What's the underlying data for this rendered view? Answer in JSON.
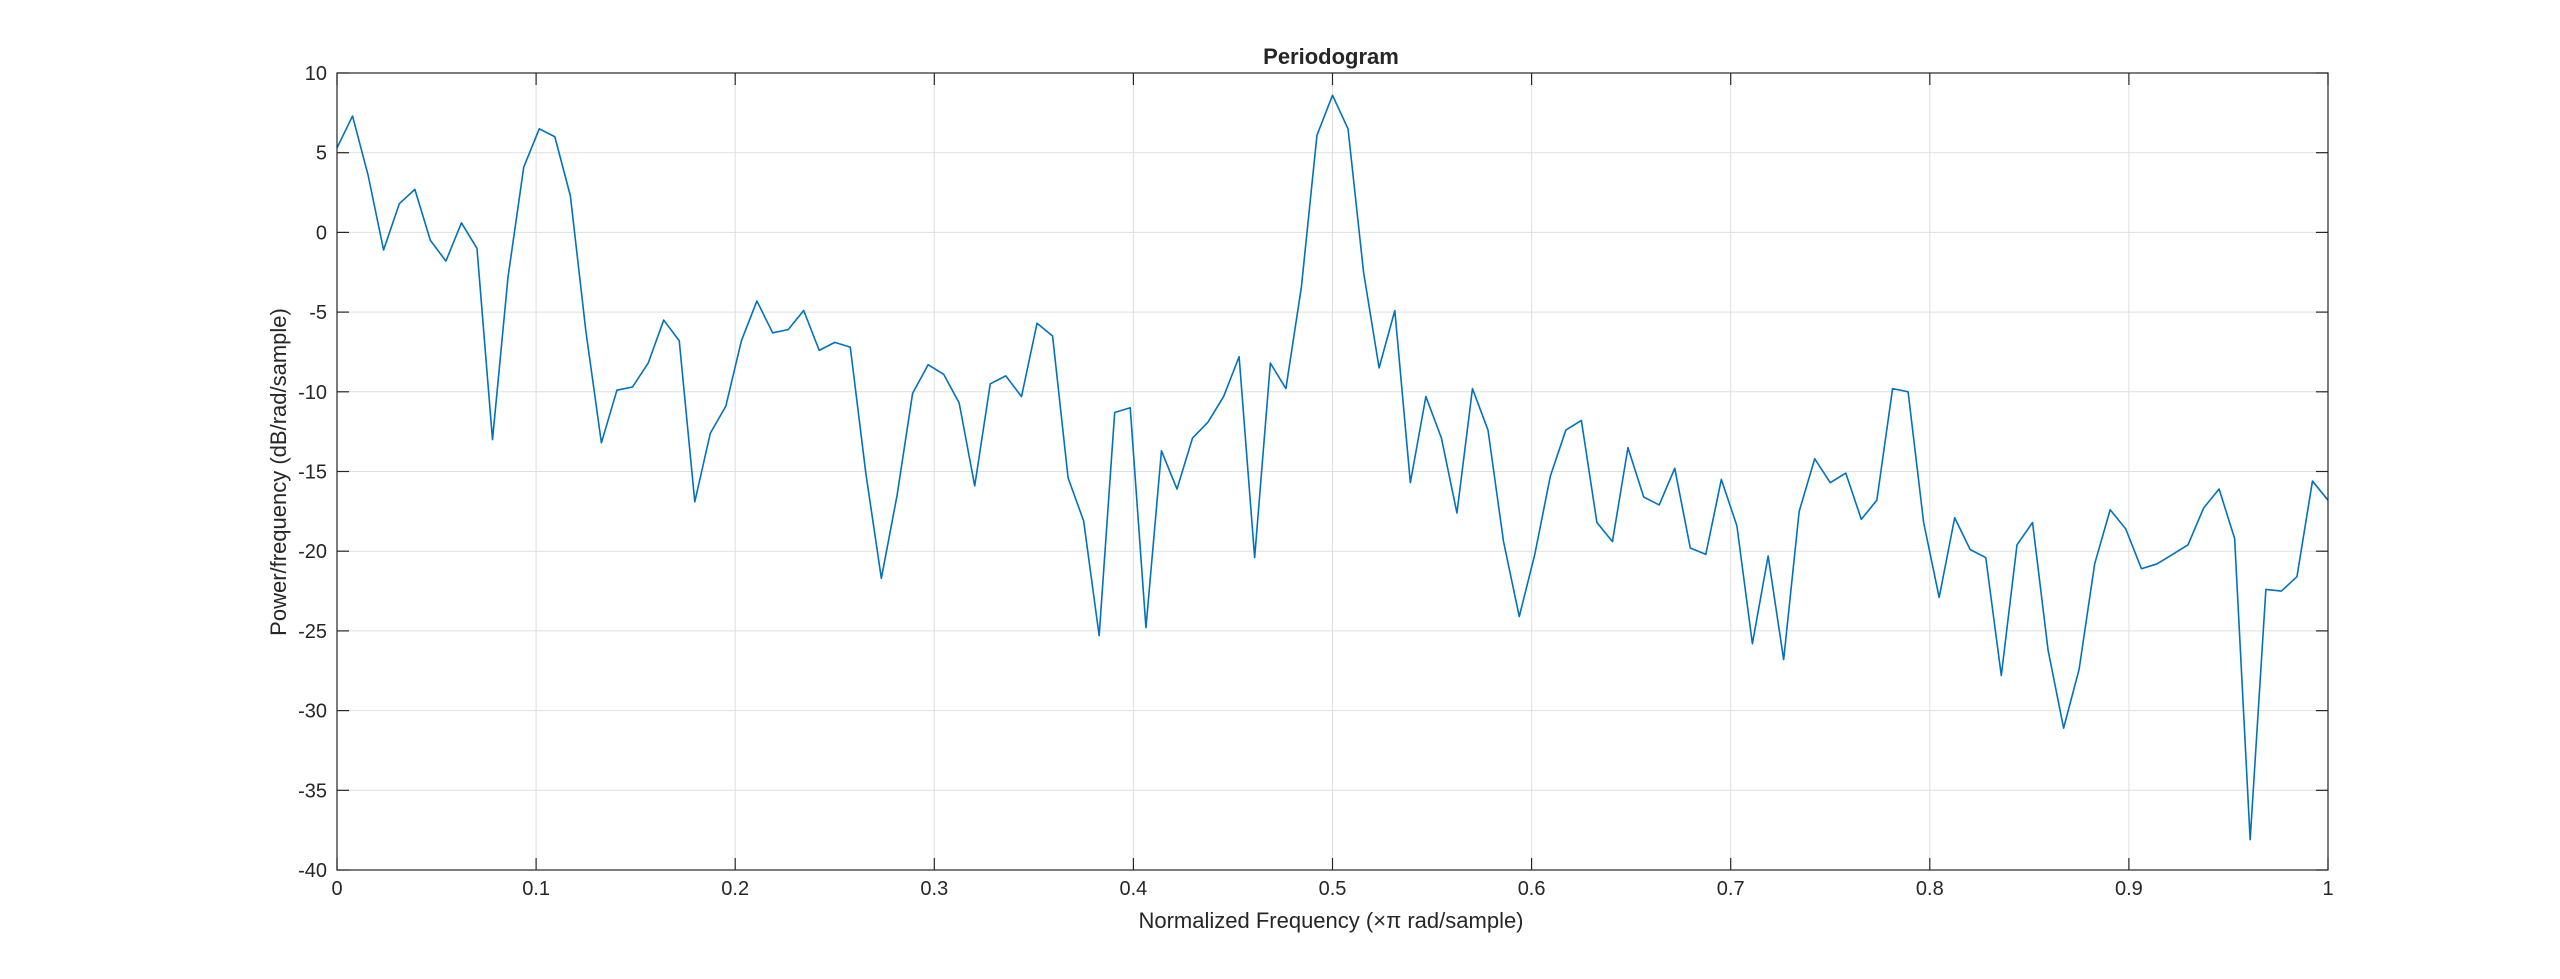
{
  "chart_data": {
    "type": "line",
    "title": "Periodogram",
    "xlabel": "Normalized Frequency  (×π rad/sample)",
    "ylabel": "Power/frequency (dB/rad/sample)",
    "xlim": [
      0,
      1
    ],
    "ylim": [
      -40,
      10
    ],
    "xticks": [
      0,
      0.1,
      0.2,
      0.3,
      0.4,
      0.5,
      0.6,
      0.7,
      0.8,
      0.9,
      1
    ],
    "yticks": [
      -40,
      -35,
      -30,
      -25,
      -20,
      -15,
      -10,
      -5,
      0,
      5,
      10
    ],
    "xtick_labels": [
      "0",
      "0.1",
      "0.2",
      "0.3",
      "0.4",
      "0.5",
      "0.6",
      "0.7",
      "0.8",
      "0.9",
      "1"
    ],
    "ytick_labels": [
      "-40",
      "-35",
      "-30",
      "-25",
      "-20",
      "-15",
      "-10",
      "-5",
      "0",
      "5",
      "10"
    ],
    "grid": true,
    "box": true,
    "line_color": "#0072BD",
    "grid_color": "#dfdfdf",
    "axis_color": "#262626",
    "series": [
      {
        "x": [
          0,
          0.0078,
          0.0156,
          0.0234,
          0.0313,
          0.0391,
          0.0469,
          0.0547,
          0.0625,
          0.0703,
          0.0781,
          0.0859,
          0.0938,
          0.1016,
          0.1094,
          0.1172,
          0.125,
          0.1328,
          0.1406,
          0.1484,
          0.1563,
          0.1641,
          0.1719,
          0.1797,
          0.1875,
          0.1953,
          0.2031,
          0.2109,
          0.2188,
          0.2266,
          0.2344,
          0.2422,
          0.25,
          0.2578,
          0.2656,
          0.2734,
          0.2813,
          0.2891,
          0.2969,
          0.3047,
          0.3125,
          0.3203,
          0.3281,
          0.3359,
          0.3438,
          0.3516,
          0.3594,
          0.3672,
          0.375,
          0.3828,
          0.3906,
          0.3984,
          0.4063,
          0.4141,
          0.4219,
          0.4297,
          0.4375,
          0.4453,
          0.4531,
          0.4609,
          0.4688,
          0.4766,
          0.4844,
          0.4922,
          0.5,
          0.5078,
          0.5156,
          0.5234,
          0.5313,
          0.5391,
          0.5469,
          0.5547,
          0.5625,
          0.5703,
          0.5781,
          0.5859,
          0.5938,
          0.6016,
          0.6094,
          0.6172,
          0.625,
          0.6328,
          0.6406,
          0.6484,
          0.6563,
          0.6641,
          0.6719,
          0.6797,
          0.6875,
          0.6953,
          0.7031,
          0.7109,
          0.7188,
          0.7266,
          0.7344,
          0.7422,
          0.75,
          0.7578,
          0.7656,
          0.7734,
          0.7813,
          0.7891,
          0.7969,
          0.8047,
          0.8125,
          0.8203,
          0.8281,
          0.8359,
          0.8438,
          0.8516,
          0.8594,
          0.8672,
          0.875,
          0.8828,
          0.8906,
          0.8984,
          0.9063,
          0.9141,
          0.9219,
          0.9297,
          0.9375,
          0.9453,
          0.9531,
          0.9609,
          0.9688,
          0.9766,
          0.9844,
          0.9922,
          1
        ],
        "y": [
          5.3,
          7.3,
          3.6,
          -1.1,
          1.8,
          2.7,
          -0.5,
          -1.8,
          0.6,
          -1,
          -13,
          -2.8,
          4.1,
          6.5,
          6,
          2.3,
          -6.2,
          -13.2,
          -9.9,
          -9.7,
          -8.2,
          -5.5,
          -6.8,
          -16.9,
          -12.6,
          -10.9,
          -6.8,
          -4.3,
          -6.3,
          -6.1,
          -4.9,
          -7.4,
          -6.9,
          -7.2,
          -15.1,
          -21.7,
          -16.5,
          -10.1,
          -8.3,
          -8.9,
          -10.7,
          -15.9,
          -9.5,
          -9,
          -10.3,
          -5.7,
          -6.5,
          -15.4,
          -18.1,
          -25.3,
          -11.3,
          -11,
          -24.8,
          -13.7,
          -16.1,
          -12.9,
          -11.9,
          -10.3,
          -7.8,
          -20.4,
          -8.2,
          -9.8,
          -3.4,
          6.1,
          8.6,
          6.5,
          -2.5,
          -8.5,
          -4.9,
          -15.7,
          -10.3,
          -12.9,
          -17.6,
          -9.8,
          -12.4,
          -19.4,
          -24.1,
          -20.2,
          -15.3,
          -12.4,
          -11.8,
          -18.2,
          -19.4,
          -13.5,
          -16.6,
          -17.1,
          -14.8,
          -19.8,
          -20.2,
          -15.5,
          -18.4,
          -25.8,
          -20.3,
          -26.8,
          -17.5,
          -14.2,
          -15.7,
          -15.1,
          -18,
          -16.8,
          -9.8,
          -10,
          -18.2,
          -22.9,
          -17.9,
          -19.9,
          -20.4,
          -27.8,
          -19.6,
          -18.2,
          -26.2,
          -31.1,
          -27.4,
          -20.8,
          -17.4,
          -18.6,
          -21.1,
          -20.8,
          -20.2,
          -19.6,
          -17.3,
          -16.1,
          -19.2,
          -38.1,
          -22.4,
          -22.5,
          -21.6,
          -15.6,
          -16.8
        ]
      }
    ]
  }
}
